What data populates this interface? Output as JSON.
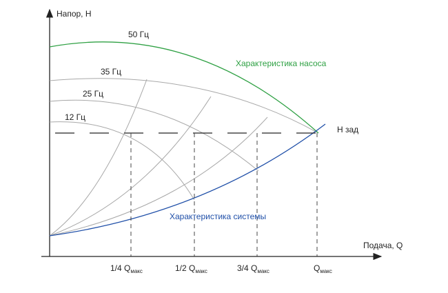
{
  "axes": {
    "y_label": "Напор, H",
    "x_label": "Подача, Q"
  },
  "curves": {
    "pump_50": "50 Гц",
    "pump_35": "35 Гц",
    "pump_25": "25 Гц",
    "pump_12": "12 Гц",
    "pump_characteristic": "Характеристика насоса",
    "system_characteristic": "Характеристика системы",
    "h_required": "H зад"
  },
  "ticks": {
    "t1_main": "1/4 Q",
    "t2_main": "1/2 Q",
    "t3_main": "3/4 Q",
    "t4_main": "Q",
    "sub": "макс"
  },
  "colors": {
    "pump_curve": "#2ea043",
    "system_curve": "#1f4fa8",
    "grid_curves": "#a8a8a8",
    "axis": "#222222"
  }
}
